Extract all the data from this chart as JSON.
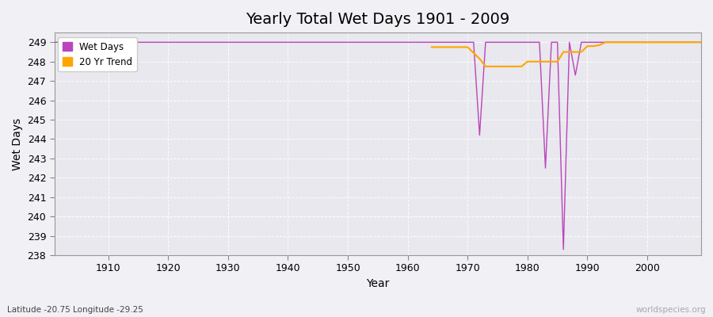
{
  "title": "Yearly Total Wet Days 1901 - 2009",
  "xlabel": "Year",
  "ylabel": "Wet Days",
  "subtitle": "Latitude -20.75 Longitude -29.25",
  "watermark": "worldspecies.org",
  "background_color": "#f0f0f5",
  "plot_bg_color": "#e8e8ee",
  "ylim": [
    238,
    249.5
  ],
  "xlim": [
    1901,
    2009
  ],
  "yticks": [
    238,
    239,
    240,
    241,
    242,
    243,
    244,
    245,
    246,
    247,
    248,
    249
  ],
  "xticks": [
    1910,
    1920,
    1930,
    1940,
    1950,
    1960,
    1970,
    1980,
    1990,
    2000
  ],
  "wet_days_color": "#bb44bb",
  "trend_color": "#ffa500",
  "years": [
    1901,
    1902,
    1903,
    1904,
    1905,
    1906,
    1907,
    1908,
    1909,
    1910,
    1911,
    1912,
    1913,
    1914,
    1915,
    1916,
    1917,
    1918,
    1919,
    1920,
    1921,
    1922,
    1923,
    1924,
    1925,
    1926,
    1927,
    1928,
    1929,
    1930,
    1931,
    1932,
    1933,
    1934,
    1935,
    1936,
    1937,
    1938,
    1939,
    1940,
    1941,
    1942,
    1943,
    1944,
    1945,
    1946,
    1947,
    1948,
    1949,
    1950,
    1951,
    1952,
    1953,
    1954,
    1955,
    1956,
    1957,
    1958,
    1959,
    1960,
    1961,
    1962,
    1963,
    1964,
    1965,
    1966,
    1967,
    1968,
    1969,
    1970,
    1971,
    1972,
    1973,
    1974,
    1975,
    1976,
    1977,
    1978,
    1979,
    1980,
    1981,
    1982,
    1983,
    1984,
    1985,
    1986,
    1987,
    1988,
    1989,
    1990,
    1991,
    1992,
    1993,
    1994,
    1995,
    1996,
    1997,
    1998,
    1999,
    2000,
    2001,
    2002,
    2003,
    2004,
    2005,
    2006,
    2007,
    2008,
    2009
  ],
  "wet_days": [
    249,
    249,
    249,
    249,
    249,
    249,
    249,
    249,
    249,
    249,
    249,
    249,
    249,
    249,
    249,
    249,
    249,
    249,
    249,
    249,
    249,
    249,
    249,
    249,
    249,
    249,
    249,
    249,
    249,
    249,
    249,
    249,
    249,
    249,
    249,
    249,
    249,
    249,
    249,
    249,
    249,
    249,
    249,
    249,
    249,
    249,
    249,
    249,
    249,
    249,
    249,
    249,
    249,
    249,
    249,
    249,
    249,
    249,
    249,
    249,
    249,
    249,
    249,
    249,
    249,
    249,
    249,
    249,
    249,
    249,
    249,
    244.2,
    249,
    249,
    249,
    249,
    249,
    249,
    249,
    249,
    249,
    249,
    242.5,
    249,
    249,
    238.3,
    249,
    247.3,
    249,
    249,
    249,
    249,
    249,
    249,
    249,
    249,
    249,
    249,
    249,
    249,
    249,
    249,
    249,
    249,
    249,
    249,
    249,
    249,
    249
  ],
  "trend": [
    null,
    null,
    null,
    null,
    null,
    null,
    null,
    null,
    null,
    null,
    null,
    null,
    null,
    null,
    null,
    null,
    null,
    null,
    null,
    null,
    null,
    null,
    null,
    null,
    null,
    null,
    null,
    null,
    null,
    null,
    null,
    null,
    null,
    null,
    null,
    null,
    null,
    null,
    null,
    null,
    null,
    null,
    null,
    null,
    null,
    null,
    null,
    null,
    null,
    null,
    null,
    null,
    null,
    null,
    null,
    null,
    null,
    null,
    null,
    null,
    null,
    null,
    null,
    248.75,
    248.75,
    248.75,
    248.75,
    248.75,
    248.75,
    248.75,
    248.45,
    248.15,
    247.75,
    247.75,
    247.75,
    247.75,
    247.75,
    247.75,
    247.75,
    248.0,
    248.0,
    248.0,
    248.0,
    248.0,
    248.0,
    248.5,
    248.5,
    248.5,
    248.5,
    248.8,
    248.8,
    248.85,
    249.0,
    249.0,
    249.0,
    249.0,
    249.0,
    249.0,
    249.0,
    249.0,
    249.0,
    249.0,
    249.0,
    249.0,
    249.0,
    249.0,
    249.0,
    249.0,
    249.0
  ]
}
